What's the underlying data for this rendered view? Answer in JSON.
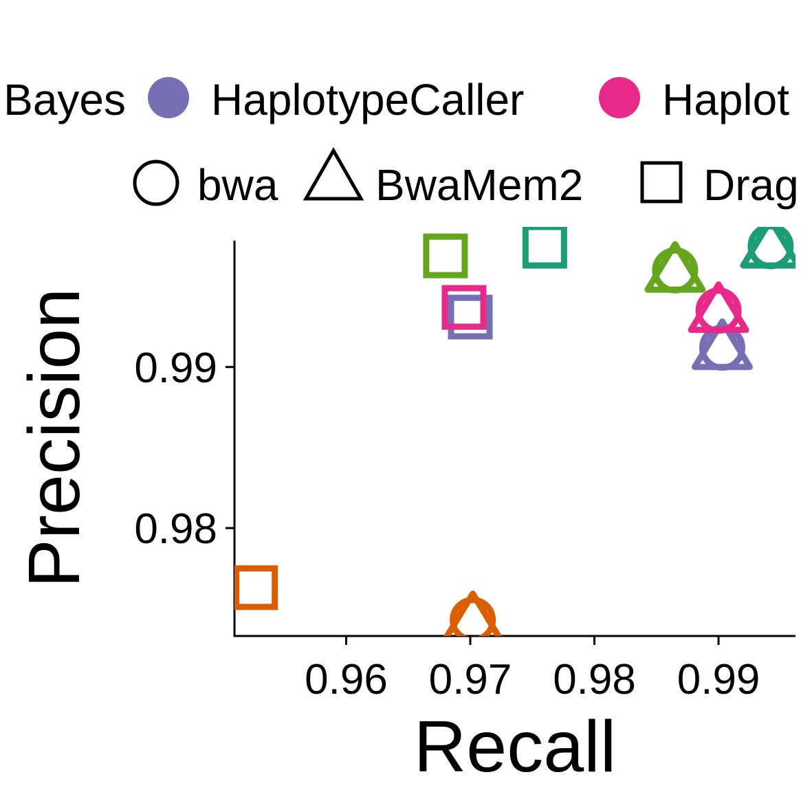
{
  "chart_data": {
    "type": "scatter",
    "xlabel": "Recall",
    "ylabel": "Precision",
    "xlim": [
      0.951,
      0.9962
    ],
    "ylim": [
      0.9733,
      0.9987
    ],
    "x_ticks": [
      {
        "value": 0.96,
        "label": "0.96"
      },
      {
        "value": 0.97,
        "label": "0.97"
      },
      {
        "value": 0.98,
        "label": "0.98"
      },
      {
        "value": 0.99,
        "label": "0.99"
      }
    ],
    "y_ticks": [
      {
        "value": 0.98,
        "label": "0.98"
      },
      {
        "value": 0.99,
        "label": "0.99"
      }
    ],
    "legend_color": {
      "position": "top",
      "items": [
        {
          "label": "Bayes",
          "color": "#1B9E77"
        },
        {
          "label": "HaplotypeCaller",
          "color": "#7570B3"
        },
        {
          "label": "Haplot",
          "color": "#E7298A"
        }
      ]
    },
    "legend_shape": {
      "position": "top",
      "items": [
        {
          "label": "bwa",
          "shape": "circle"
        },
        {
          "label": "BwaMem2",
          "shape": "triangle"
        },
        {
          "label": "Drag",
          "shape": "square"
        }
      ]
    },
    "points": [
      {
        "x": 0.9527,
        "y": 0.9763,
        "color": "#D95F02",
        "shape": "square"
      },
      {
        "x": 0.9702,
        "y": 0.9743,
        "color": "#D95F02",
        "shape": "circle"
      },
      {
        "x": 0.9702,
        "y": 0.9743,
        "color": "#D95F02",
        "shape": "triangle"
      },
      {
        "x": 0.968,
        "y": 0.9969,
        "color": "#66A61E",
        "shape": "square"
      },
      {
        "x": 0.97,
        "y": 0.9931,
        "color": "#7570B3",
        "shape": "square"
      },
      {
        "x": 0.9695,
        "y": 0.9937,
        "color": "#E7298A",
        "shape": "square"
      },
      {
        "x": 0.976,
        "y": 0.9975,
        "color": "#1B9E77",
        "shape": "square"
      },
      {
        "x": 0.9865,
        "y": 0.996,
        "color": "#66A61E",
        "shape": "circle"
      },
      {
        "x": 0.9865,
        "y": 0.996,
        "color": "#66A61E",
        "shape": "triangle"
      },
      {
        "x": 0.9903,
        "y": 0.9912,
        "color": "#7570B3",
        "shape": "circle"
      },
      {
        "x": 0.9903,
        "y": 0.9912,
        "color": "#7570B3",
        "shape": "triangle"
      },
      {
        "x": 0.99,
        "y": 0.9935,
        "color": "#E7298A",
        "shape": "circle"
      },
      {
        "x": 0.99,
        "y": 0.9935,
        "color": "#E7298A",
        "shape": "triangle"
      },
      {
        "x": 0.9942,
        "y": 0.9975,
        "color": "#1B9E77",
        "shape": "circle"
      },
      {
        "x": 0.9942,
        "y": 0.9975,
        "color": "#1B9E77",
        "shape": "triangle"
      }
    ]
  }
}
